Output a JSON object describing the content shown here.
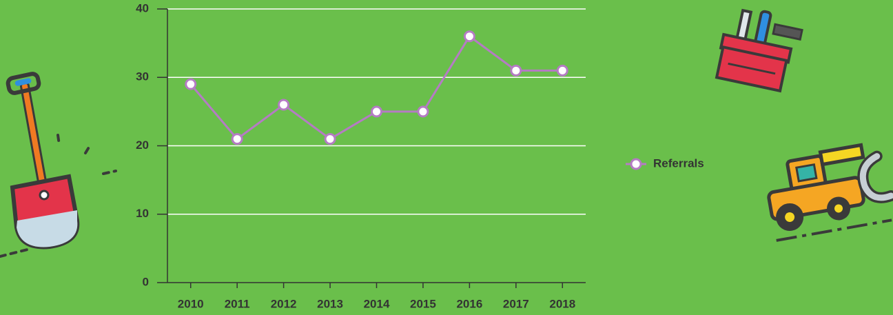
{
  "chart_data": {
    "type": "line",
    "categories": [
      "2010",
      "2011",
      "2012",
      "2013",
      "2014",
      "2015",
      "2016",
      "2017",
      "2018"
    ],
    "series": [
      {
        "name": "Referrals",
        "color": "#b57bc4",
        "values": [
          29,
          21,
          26,
          21,
          25,
          25,
          36,
          31,
          31
        ]
      }
    ],
    "ylim": [
      0,
      40
    ],
    "yticks": [
      0,
      10,
      20,
      30,
      40
    ],
    "grid": true,
    "legend": "right"
  }
}
